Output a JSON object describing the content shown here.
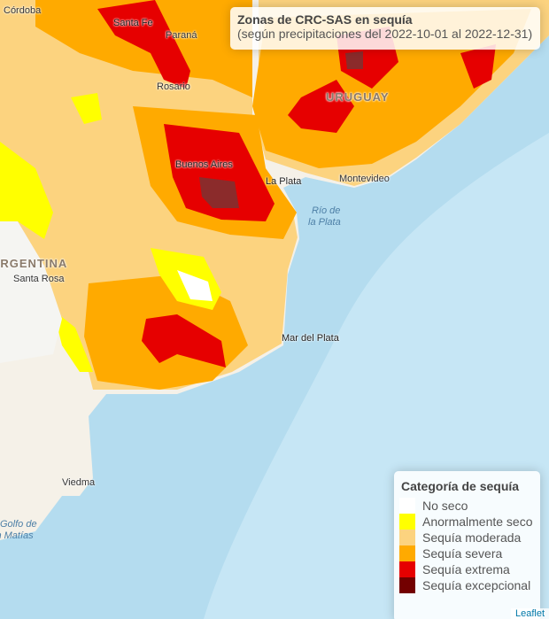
{
  "info": {
    "title": "Zonas de CRC-SAS en sequía",
    "subtitle": "(según precipitaciones del 2022-10-01 al 2022-12-31)"
  },
  "legend": {
    "title": "Categoría de sequía",
    "items": [
      {
        "label": "No seco",
        "color": "#ffffff"
      },
      {
        "label": "Anormalmente seco",
        "color": "#ffff00"
      },
      {
        "label": "Sequía moderada",
        "color": "#fcd37f"
      },
      {
        "label": "Sequía severa",
        "color": "#ffaa00"
      },
      {
        "label": "Sequía extrema",
        "color": "#e60000"
      },
      {
        "label": "Sequía excepcional",
        "color": "#730000"
      }
    ]
  },
  "places": [
    "Córdoba",
    "Santa Fe",
    "Paraná",
    "Rosario",
    "URUGUAY",
    "Buenos Aires",
    "La Plata",
    "Montevideo",
    "Río de",
    "la Plata",
    "ARGENTINA",
    "Santa Rosa",
    "Mar del Plata",
    "Viedma",
    "Golfo de",
    "San Matías"
  ],
  "attribution": "Leaflet"
}
